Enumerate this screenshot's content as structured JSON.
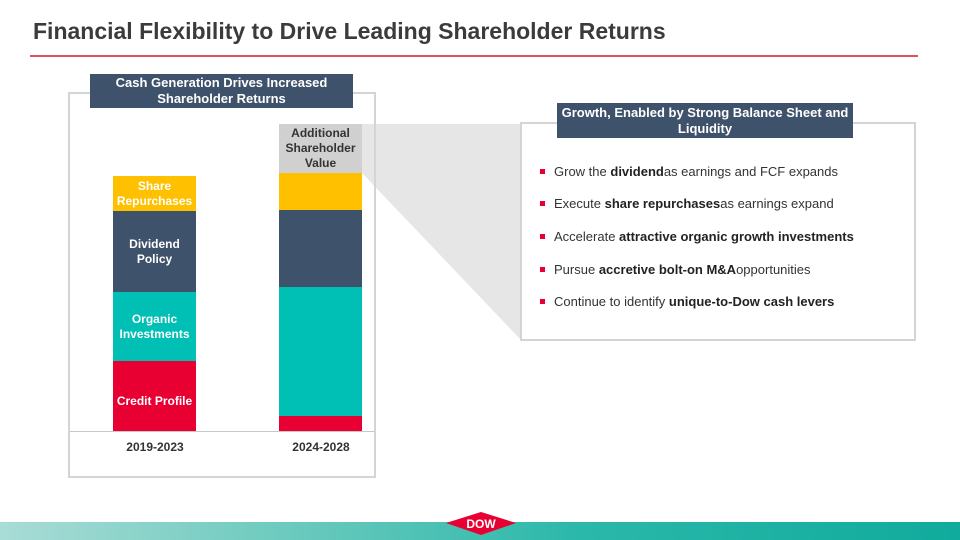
{
  "title": "Financial Flexibility to Drive Leading Shareholder Returns",
  "left_panel": {
    "header": "Cash Generation Drives Increased Shareholder Returns",
    "bars": [
      {
        "label": "2019-2023",
        "segments": [
          {
            "name": "Share Repurchases",
            "color": "#ffc000"
          },
          {
            "name": "Dividend Policy",
            "color": "#3f526b"
          },
          {
            "name": "Organic Investments",
            "color": "#00bfb5"
          },
          {
            "name": "Credit Profile",
            "color": "#e80033"
          }
        ]
      },
      {
        "label": "2024-2028",
        "segments": [
          {
            "name": "Additional Shareholder Value",
            "color": "#d0d0d0"
          },
          {
            "name": "",
            "color": "#ffc000"
          },
          {
            "name": "",
            "color": "#3f526b"
          },
          {
            "name": "",
            "color": "#00bfb5"
          },
          {
            "name": "",
            "color": "#e80033"
          }
        ]
      }
    ]
  },
  "right_panel": {
    "header": "Growth, Enabled by Strong Balance Sheet and Liquidity",
    "bullets": [
      {
        "pre": "Grow the ",
        "bold": "dividend",
        "post": " as earnings and FCF expands"
      },
      {
        "pre": "Execute ",
        "bold": "share repurchases",
        "post": " as earnings expand"
      },
      {
        "pre": "Accelerate ",
        "bold": "attractive organic growth investments",
        "post": ""
      },
      {
        "pre": "Pursue ",
        "bold": "accretive bolt-on M&A",
        "post": " opportunities"
      },
      {
        "pre": "Continue to identify ",
        "bold": "unique-to-Dow cash levers",
        "post": ""
      }
    ]
  },
  "logo": "DOW"
}
